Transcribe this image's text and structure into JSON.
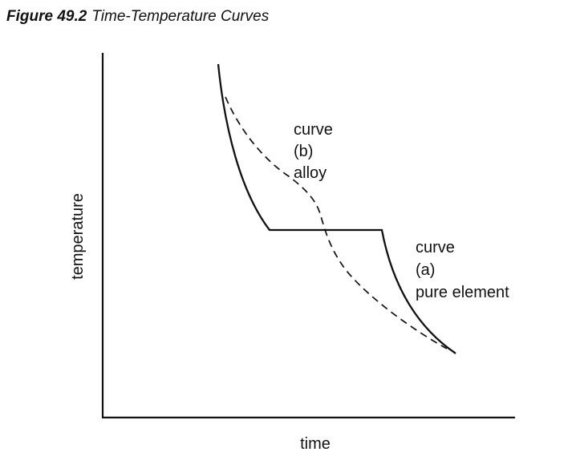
{
  "figure": {
    "number": "Figure 49.2",
    "title": "Time-Temperature Curves"
  },
  "axes": {
    "x_label": "time",
    "y_label": "temperature"
  },
  "curves": [
    {
      "id": "a",
      "label_lines": [
        "curve",
        "(a)",
        "pure element"
      ],
      "style": "solid"
    },
    {
      "id": "b",
      "label_lines": [
        "curve",
        "(b)",
        "alloy"
      ],
      "style": "dashed"
    }
  ],
  "colors": {
    "ink": "#111111",
    "background": "#ffffff"
  }
}
